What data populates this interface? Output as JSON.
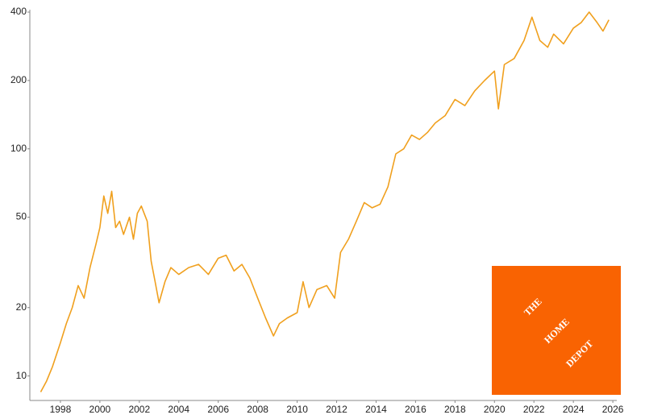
{
  "chart_data": {
    "type": "line",
    "ylog": true,
    "grid": false,
    "x": [
      1997.0,
      1997.3,
      1997.6,
      1998.0,
      1998.3,
      1998.6,
      1998.9,
      1999.2,
      1999.5,
      1999.8,
      2000.0,
      2000.2,
      2000.4,
      2000.6,
      2000.8,
      2001.0,
      2001.2,
      2001.5,
      2001.7,
      2001.9,
      2002.1,
      2002.4,
      2002.6,
      2002.8,
      2003.0,
      2003.3,
      2003.6,
      2004.0,
      2004.5,
      2005.0,
      2005.5,
      2006.0,
      2006.4,
      2006.8,
      2007.2,
      2007.6,
      2008.0,
      2008.4,
      2008.8,
      2009.1,
      2009.5,
      2010.0,
      2010.3,
      2010.6,
      2011.0,
      2011.5,
      2011.9,
      2012.2,
      2012.6,
      2013.0,
      2013.4,
      2013.8,
      2014.2,
      2014.6,
      2015.0,
      2015.4,
      2015.8,
      2016.2,
      2016.6,
      2017.0,
      2017.5,
      2018.0,
      2018.5,
      2019.0,
      2019.5,
      2020.0,
      2020.2,
      2020.5,
      2021.0,
      2021.5,
      2021.9,
      2022.3,
      2022.7,
      2023.0,
      2023.5,
      2024.0,
      2024.4,
      2024.8,
      2025.2,
      2025.5,
      2025.8
    ],
    "series": [
      {
        "color": "#f0a01e",
        "values": [
          8.5,
          9.5,
          11,
          14,
          17,
          20,
          25,
          22,
          30,
          38,
          45,
          62,
          52,
          65,
          45,
          48,
          42,
          50,
          40,
          52,
          56,
          48,
          32,
          26,
          21,
          26,
          30,
          28,
          30,
          31,
          28,
          33,
          34,
          29,
          31,
          27,
          22,
          18,
          15,
          17,
          18,
          19,
          26,
          20,
          24,
          25,
          22,
          35,
          40,
          48,
          58,
          55,
          57,
          68,
          95,
          100,
          115,
          110,
          118,
          130,
          140,
          165,
          155,
          180,
          200,
          220,
          150,
          235,
          250,
          300,
          380,
          300,
          280,
          320,
          290,
          340,
          360,
          400,
          360,
          330,
          370
        ]
      }
    ],
    "xlim": [
      1996.45,
      2026.2
    ],
    "xticks": [
      1998,
      2000,
      2002,
      2004,
      2006,
      2008,
      2010,
      2012,
      2014,
      2016,
      2018,
      2020,
      2022,
      2024,
      2026
    ],
    "ylim": [
      7.8,
      410
    ],
    "yticks": [
      10,
      20,
      50,
      100,
      200,
      400
    ],
    "logo_text": [
      "THE",
      "HOME",
      "DEPOT"
    ]
  }
}
